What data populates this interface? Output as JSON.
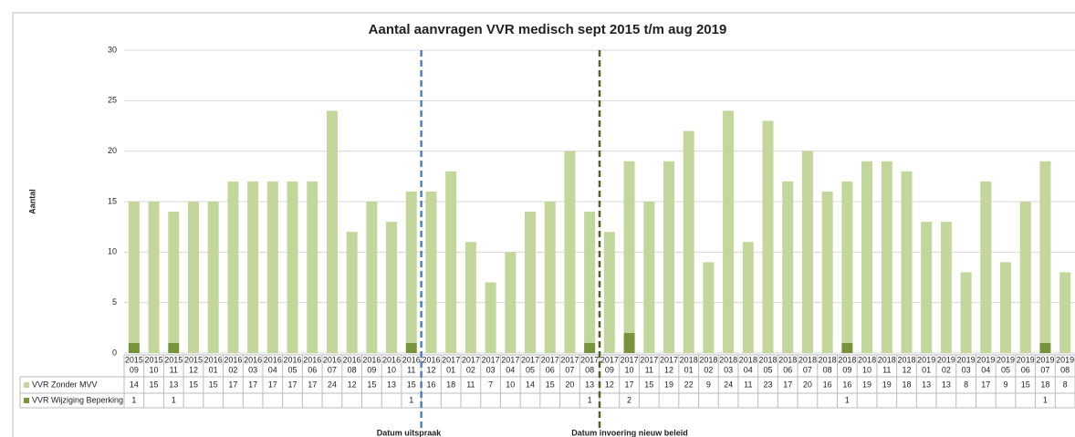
{
  "chart_data": {
    "type": "bar",
    "stacked": true,
    "title": "Aantal aanvragen VVR medisch sept 2015 t/m aug 2019",
    "y_label": "Aantal",
    "categories": [
      [
        "2015",
        "09"
      ],
      [
        "2015",
        "10"
      ],
      [
        "2015",
        "11"
      ],
      [
        "2015",
        "12"
      ],
      [
        "2016",
        "01"
      ],
      [
        "2016",
        "02"
      ],
      [
        "2016",
        "03"
      ],
      [
        "2016",
        "04"
      ],
      [
        "2016",
        "05"
      ],
      [
        "2016",
        "06"
      ],
      [
        "2016",
        "07"
      ],
      [
        "2016",
        "08"
      ],
      [
        "2016",
        "09"
      ],
      [
        "2016",
        "10"
      ],
      [
        "2016",
        "11"
      ],
      [
        "2016",
        "12"
      ],
      [
        "2017",
        "01"
      ],
      [
        "2017",
        "02"
      ],
      [
        "2017",
        "03"
      ],
      [
        "2017",
        "04"
      ],
      [
        "2017",
        "05"
      ],
      [
        "2017",
        "06"
      ],
      [
        "2017",
        "07"
      ],
      [
        "2017",
        "08"
      ],
      [
        "2017",
        "09"
      ],
      [
        "2017",
        "10"
      ],
      [
        "2017",
        "11"
      ],
      [
        "2017",
        "12"
      ],
      [
        "2018",
        "01"
      ],
      [
        "2018",
        "02"
      ],
      [
        "2018",
        "03"
      ],
      [
        "2018",
        "04"
      ],
      [
        "2018",
        "05"
      ],
      [
        "2018",
        "06"
      ],
      [
        "2018",
        "07"
      ],
      [
        "2018",
        "08"
      ],
      [
        "2018",
        "09"
      ],
      [
        "2018",
        "10"
      ],
      [
        "2018",
        "11"
      ],
      [
        "2018",
        "12"
      ],
      [
        "2019",
        "01"
      ],
      [
        "2019",
        "02"
      ],
      [
        "2019",
        "03"
      ],
      [
        "2019",
        "04"
      ],
      [
        "2019",
        "05"
      ],
      [
        "2019",
        "06"
      ],
      [
        "2019",
        "07"
      ],
      [
        "2019",
        "08"
      ]
    ],
    "series": [
      {
        "name": "VVR Wijziging Beperking",
        "color": "#77933c",
        "values": [
          1,
          null,
          1,
          null,
          null,
          null,
          null,
          null,
          null,
          null,
          null,
          null,
          null,
          null,
          1,
          null,
          null,
          null,
          null,
          null,
          null,
          null,
          null,
          1,
          null,
          2,
          null,
          null,
          null,
          null,
          null,
          null,
          null,
          null,
          null,
          null,
          1,
          null,
          null,
          null,
          null,
          null,
          null,
          null,
          null,
          null,
          1,
          null
        ]
      },
      {
        "name": "VVR Zonder MVV",
        "color": "#c3d69b",
        "values": [
          14,
          15,
          13,
          15,
          15,
          17,
          17,
          17,
          17,
          17,
          24,
          12,
          15,
          13,
          15,
          16,
          18,
          11,
          7,
          10,
          14,
          15,
          20,
          13,
          12,
          17,
          15,
          19,
          22,
          9,
          24,
          11,
          23,
          17,
          20,
          16,
          16,
          19,
          19,
          18,
          13,
          13,
          8,
          17,
          9,
          15,
          18,
          8
        ]
      }
    ],
    "ylim": [
      0,
      30
    ],
    "yticks": [
      0,
      5,
      10,
      15,
      20,
      25,
      30
    ],
    "grid": true,
    "annotations": [
      {
        "text": "Datum uitspraak",
        "color": "#4f81bd"
      },
      {
        "text": "Datum invoering nieuw beleid",
        "color": "#4f6228"
      }
    ]
  }
}
